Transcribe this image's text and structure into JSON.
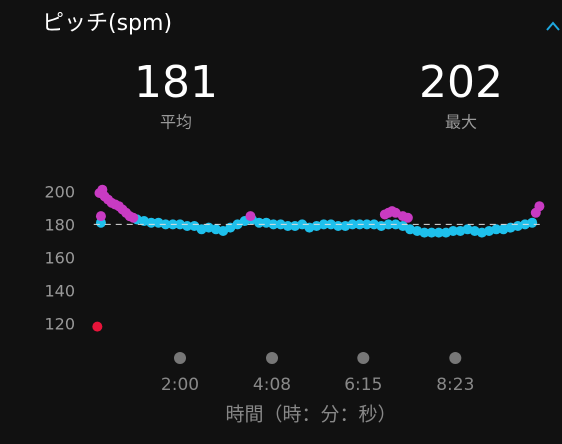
{
  "title": "ピッチ(spm)",
  "stats": [
    {
      "value": 181,
      "label": "平均"
    },
    {
      "value": 202,
      "label": "最大"
    }
  ],
  "chart_data": {
    "type": "scatter",
    "xlabel": "時間（時：分：秒）",
    "xlim": [
      0,
      625
    ],
    "ylim": [
      115,
      205
    ],
    "xticks": [
      {
        "value": 120,
        "label": "2:00"
      },
      {
        "value": 248,
        "label": "4:08"
      },
      {
        "value": 375,
        "label": "6:15"
      },
      {
        "value": 503,
        "label": "8:23"
      }
    ],
    "yticks": [
      120,
      140,
      160,
      180,
      200
    ],
    "series": [
      {
        "color": "#1ec0ec",
        "x": [
          10,
          60,
          70,
          80,
          90,
          100,
          110,
          120,
          130,
          140,
          150,
          160,
          170,
          180,
          190,
          200,
          210,
          220,
          230,
          240,
          250,
          260,
          270,
          280,
          290,
          300,
          310,
          320,
          330,
          340,
          350,
          360,
          370,
          380,
          390,
          400,
          410,
          420,
          430,
          440,
          450,
          460,
          470,
          480,
          490,
          500,
          510,
          520,
          530,
          540,
          550,
          560,
          570,
          580,
          590,
          600,
          610
        ],
        "values": [
          182,
          184,
          183,
          182,
          182,
          181,
          181,
          181,
          180,
          180,
          178,
          179,
          178,
          177,
          179,
          181,
          183,
          184,
          182,
          182,
          181,
          181,
          180,
          180,
          181,
          179,
          180,
          181,
          181,
          180,
          180,
          181,
          181,
          181,
          181,
          180,
          181,
          181,
          180,
          178,
          177,
          176,
          176,
          176,
          176,
          177,
          177,
          178,
          177,
          176,
          177,
          178,
          178,
          179,
          180,
          181,
          182
        ]
      },
      {
        "color": "#c93bc3",
        "x": [
          8,
          10,
          12,
          15,
          20,
          25,
          30,
          35,
          40,
          45,
          50,
          55,
          218,
          405,
          410,
          415,
          420,
          430,
          437,
          615,
          620
        ],
        "values": [
          200,
          186,
          202,
          198,
          196,
          194,
          193,
          192,
          190,
          188,
          186,
          185,
          186,
          187,
          188,
          189,
          188,
          186,
          185,
          188,
          192
        ]
      },
      {
        "color": "#e8143a",
        "x": [
          5
        ],
        "values": [
          119
        ]
      }
    ]
  }
}
